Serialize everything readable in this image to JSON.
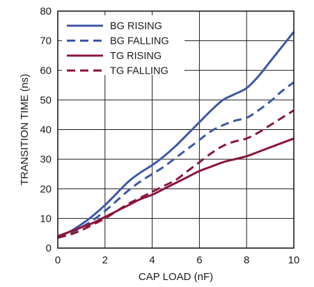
{
  "chart_data": {
    "type": "line",
    "xlabel": "CAP LOAD (nF)",
    "ylabel": "TRANSITION TIME (ns)",
    "xlim": [
      0,
      10
    ],
    "ylim": [
      0,
      80
    ],
    "x_ticks": [
      "0",
      "2",
      "4",
      "6",
      "8",
      "10"
    ],
    "y_ticks": [
      "0",
      "10",
      "20",
      "30",
      "40",
      "50",
      "60",
      "70",
      "80"
    ],
    "grid": true,
    "legend_position": "top-left",
    "series": [
      {
        "name": "BG RISING",
        "color": "#3b57a6",
        "dash": "solid",
        "x": [
          0,
          0.5,
          1,
          1.5,
          2,
          2.5,
          3,
          3.5,
          4,
          4.5,
          5,
          5.5,
          6,
          6.5,
          7,
          7.5,
          8,
          8.5,
          9,
          9.5,
          10
        ],
        "y": [
          4,
          5.5,
          8,
          11,
          14.5,
          18.5,
          22.5,
          25.5,
          28,
          31,
          34.5,
          38.5,
          42.5,
          46.5,
          50,
          52,
          54,
          58,
          63,
          68,
          73
        ]
      },
      {
        "name": "BG FALLING",
        "color": "#3b57a6",
        "dash": "dashed",
        "x": [
          0,
          0.5,
          1,
          1.5,
          2,
          2.5,
          3,
          3.5,
          4,
          4.5,
          5,
          5.5,
          6,
          6.5,
          7,
          7.5,
          8,
          8.5,
          9,
          9.5,
          10
        ],
        "y": [
          4,
          5,
          7,
          9.5,
          12.5,
          16,
          19.5,
          22.5,
          25,
          27.5,
          30.5,
          33.5,
          36.5,
          39.5,
          41.5,
          43,
          44,
          46.5,
          49.5,
          53,
          56
        ]
      },
      {
        "name": "TG RISING",
        "color": "#8b1438",
        "dash": "solid",
        "x": [
          0,
          0.5,
          1,
          1.5,
          2,
          2.5,
          3,
          3.5,
          4,
          4.5,
          5,
          5.5,
          6,
          6.5,
          7,
          7.5,
          8,
          8.5,
          9,
          9.5,
          10
        ],
        "y": [
          4,
          5.5,
          7,
          8.5,
          10.5,
          12.5,
          14.5,
          16.5,
          18,
          20,
          22,
          24,
          26,
          27.5,
          29,
          30,
          31,
          32.5,
          34,
          35.5,
          37
        ]
      },
      {
        "name": "TG FALLING",
        "color": "#8b1438",
        "dash": "dashed",
        "x": [
          0,
          0.5,
          1,
          1.5,
          2,
          2.5,
          3,
          3.5,
          4,
          4.5,
          5,
          5.5,
          6,
          6.5,
          7,
          7.5,
          8,
          8.5,
          9,
          9.5,
          10
        ],
        "y": [
          3.5,
          4.5,
          6,
          8,
          10,
          12.5,
          15,
          17,
          19,
          21,
          23,
          26,
          29,
          32,
          34.5,
          36,
          37,
          39,
          41.5,
          44,
          46.5
        ]
      }
    ]
  }
}
